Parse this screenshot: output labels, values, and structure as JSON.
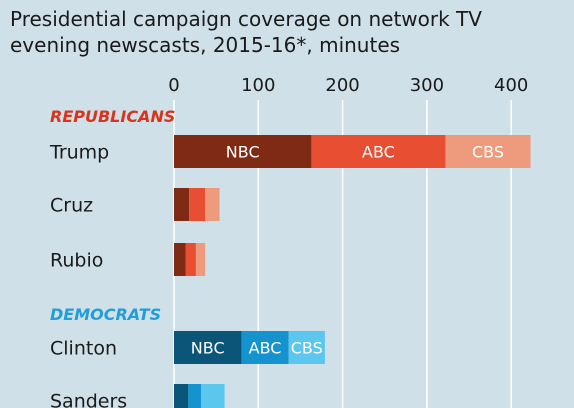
{
  "chart_data": {
    "type": "bar",
    "orientation": "horizontal",
    "stacked": true,
    "title": "Presidential campaign coverage on network TV evening newscasts, 2015-16*, minutes",
    "title_lines": [
      "Presidential campaign coverage on network TV",
      "evening newscasts, 2015-16*, minutes"
    ],
    "xlim": [
      0,
      430
    ],
    "ticks": [
      0,
      100,
      200,
      300,
      400
    ],
    "grid": true,
    "groups": [
      {
        "label": "REPUBLICANS",
        "label_color": "#d9341b",
        "colors": [
          "#7f2a14",
          "#e84e32",
          "#ee9a7c"
        ],
        "candidates": [
          {
            "name": "Trump",
            "values": [
              163,
              159,
              101
            ],
            "segment_labels": [
              "NBC",
              "ABC",
              "CBS"
            ]
          },
          {
            "name": "Cruz",
            "values": [
              18,
              19,
              17
            ]
          },
          {
            "name": "Rubio",
            "values": [
              14,
              12,
              11
            ]
          }
        ]
      },
      {
        "label": "DEMOCRATS",
        "label_color": "#1f9ed8",
        "colors": [
          "#0b5579",
          "#1593cf",
          "#5cc7ee"
        ],
        "candidates": [
          {
            "name": "Clinton",
            "values": [
              80,
              56,
              43
            ],
            "segment_labels": [
              "NBC",
              "ABC",
              "CBS"
            ]
          },
          {
            "name": "Sanders",
            "values": [
              17,
              15,
              28
            ]
          }
        ]
      }
    ],
    "series": [
      {
        "name": "NBC"
      },
      {
        "name": "ABC"
      },
      {
        "name": "CBS"
      }
    ]
  },
  "colors": {
    "background": "#cfe0e8",
    "grid": "#ffffff",
    "text": "#1a1a1a"
  }
}
